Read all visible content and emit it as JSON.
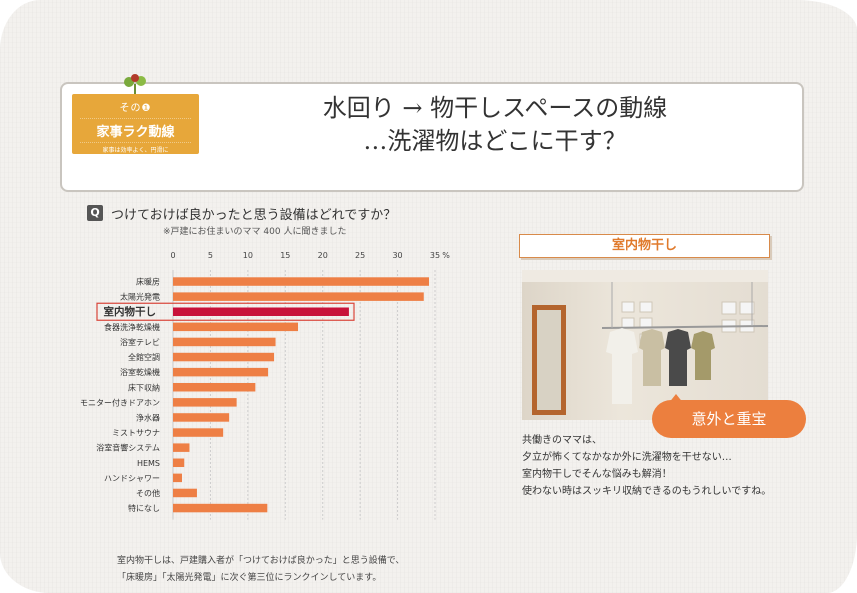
{
  "header": {
    "badge_number": "その❶",
    "badge_title": "家事ラク動線",
    "badge_subtitle": "家事は効率よく、円滑に",
    "title_line1": "水回り → 物干しスペースの動線",
    "title_line2": "…洗濯物はどこに干す？"
  },
  "question": {
    "icon": "Q",
    "text": "つけておけば良かったと思う設備はどれですか？",
    "note": "※戸建にお住まいのママ 400 人に聞きました"
  },
  "chart_data": {
    "type": "bar",
    "orientation": "horizontal",
    "categories": [
      "床暖房",
      "太陽光発電",
      "室内物干し",
      "食器洗浄乾燥機",
      "浴室テレビ",
      "全館空調",
      "浴室乾燥機",
      "床下収納",
      "モニター付きドアホン",
      "浄水器",
      "ミストサウナ",
      "浴室音響システム",
      "HEMS",
      "ハンドシャワー",
      "その他",
      "特になし"
    ],
    "values": [
      34.2,
      33.5,
      23.5,
      16.7,
      13.7,
      13.5,
      12.7,
      11,
      8.5,
      7.5,
      6.7,
      2.2,
      1.5,
      1.2,
      3.2,
      12.6
    ],
    "highlight_index": 2,
    "xlim": [
      0,
      35
    ],
    "xticks": [
      "0",
      "5",
      "10",
      "15",
      "20",
      "25",
      "30",
      "35"
    ],
    "x_unit": "%",
    "grid": true,
    "colors": {
      "bar": "#ee7f45",
      "highlight": "#c8123a",
      "highlight_box": "#d9453a",
      "grid": "#cccccc"
    }
  },
  "footnote": {
    "line1": "室内物干しは、戸建購入者が「つけておけば良かった」と思う設備で、",
    "line2": "「床暖房」「太陽光発電」に次ぐ第三位にランクインしています。"
  },
  "side": {
    "tag_label": "室内物干し",
    "balloon": "意外と重宝",
    "desc_lines": [
      "共働きのママは、",
      "夕立が怖くてなかなか外に洗濯物を干せない…",
      "室内物干しでそんな悩みも解消！",
      "使わない時はスッキリ収納できるのもうれしいですね。"
    ]
  }
}
